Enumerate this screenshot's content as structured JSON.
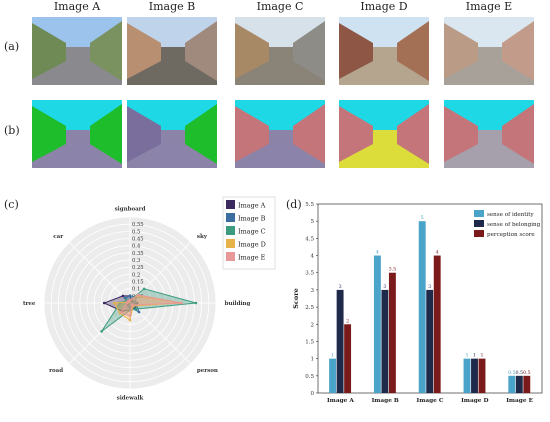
{
  "images": [
    "Image A",
    "Image B",
    "Image C",
    "Image D",
    "Image E"
  ],
  "row_labels": [
    "(a)",
    "(b)"
  ],
  "panel_labels": {
    "c": "(c)",
    "d": "(d)"
  },
  "photo_rows": {
    "a": [
      {
        "sky": "#9cc3ec",
        "ground": "#8a8a8e",
        "left": "#6f8a55",
        "right": "#7a9160"
      },
      {
        "sky": "#bfd4ea",
        "ground": "#6e6a62",
        "left": "#b98f72",
        "right": "#9f8a7d"
      },
      {
        "sky": "#d7e1ea",
        "ground": "#8a8377",
        "left": "#a88966",
        "right": "#8d8c86"
      },
      {
        "sky": "#cfe2f1",
        "ground": "#b5a58e",
        "left": "#8d5645",
        "right": "#a47055"
      },
      {
        "sky": "#dbe7f0",
        "ground": "#a7a199",
        "left": "#b99b86",
        "right": "#c29b8a"
      }
    ],
    "b": [
      {
        "sky": "#1ed8e6",
        "ground": "#8b83a8",
        "left": "#1ebd2b",
        "right": "#1ebd2b"
      },
      {
        "sky": "#1ed8e6",
        "ground": "#8b83a8",
        "left": "#7a6e9c",
        "right": "#1ebd2b"
      },
      {
        "sky": "#1ed8e6",
        "ground": "#8b83a8",
        "left": "#c4757a",
        "right": "#c4757a"
      },
      {
        "sky": "#1ed8e6",
        "ground": "#dcdc3b",
        "left": "#c4757a",
        "right": "#c4757a"
      },
      {
        "sky": "#1ed8e6",
        "ground": "#a6a0ac",
        "left": "#c4757a",
        "right": "#c4757a"
      }
    ]
  },
  "chart_data": [
    {
      "type": "radar",
      "axes": [
        "signboard",
        "sky",
        "building",
        "person",
        "sidewalk",
        "road",
        "tree",
        "car"
      ],
      "ticks": [
        "0.05",
        "0.1",
        "0.15",
        "0.2",
        "0.25",
        "0.3",
        "0.35",
        "0.4",
        "0.45",
        "0.5",
        "0.55"
      ],
      "rmax": 0.6,
      "series": [
        {
          "name": "Image A",
          "color": "#3b2a5e",
          "values": [
            0.05,
            0.02,
            0.05,
            0.05,
            0.05,
            0.08,
            0.18,
            0.07
          ]
        },
        {
          "name": "Image B",
          "color": "#3b6fa0",
          "values": [
            0.05,
            0.06,
            0.04,
            0.09,
            0.03,
            0.02,
            0.01,
            0.05
          ]
        },
        {
          "name": "Image C",
          "color": "#3d9b7f",
          "values": [
            0.02,
            0.14,
            0.46,
            0.06,
            0.05,
            0.28,
            0.07,
            0.03
          ]
        },
        {
          "name": "Image D",
          "color": "#e8b24a",
          "values": [
            0.02,
            0.07,
            0.35,
            0.03,
            0.12,
            0.1,
            0.11,
            0.01
          ]
        },
        {
          "name": "Image E",
          "color": "#e89898",
          "values": [
            0.02,
            0.08,
            0.36,
            0.02,
            0.09,
            0.09,
            0.02,
            0.02
          ]
        }
      ]
    },
    {
      "type": "bar",
      "categories": [
        "Image A",
        "Image B",
        "Image C",
        "Image D",
        "Image E"
      ],
      "ylabel": "Score",
      "yticks": [
        "0",
        "0.5",
        "1",
        "1.5",
        "2",
        "2.5",
        "3",
        "3.5",
        "4",
        "4.5",
        "5",
        "5.5"
      ],
      "ylim": [
        0,
        5.5
      ],
      "series": [
        {
          "name": "sense of identity",
          "color": "#4aa3c8",
          "values": [
            1,
            4,
            5,
            1,
            0.5
          ]
        },
        {
          "name": "sense of belonging",
          "color": "#1f2a4a",
          "values": [
            3,
            3,
            3,
            1,
            0.5
          ]
        },
        {
          "name": "perception score",
          "color": "#7a1a1a",
          "values": [
            2,
            3.5,
            4,
            1,
            0.5
          ]
        }
      ]
    }
  ]
}
